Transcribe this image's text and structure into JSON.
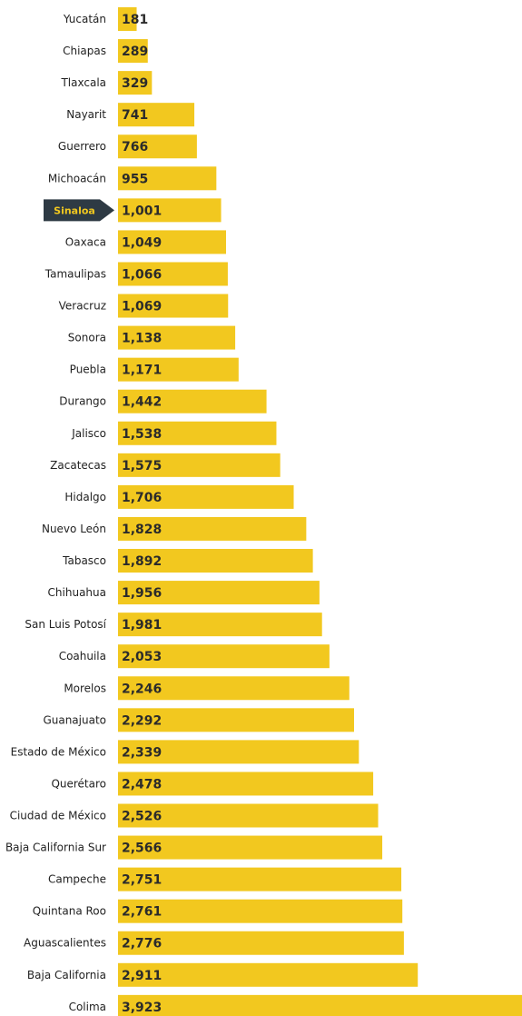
{
  "chart_data": {
    "type": "bar",
    "orientation": "horizontal",
    "categories": [
      "Yucatán",
      "Chiapas",
      "Tlaxcala",
      "Nayarit",
      "Guerrero",
      "Michoacán",
      "Sinaloa",
      "Oaxaca",
      "Tamaulipas",
      "Veracruz",
      "Sonora",
      "Puebla",
      "Durango",
      "Jalisco",
      "Zacatecas",
      "Hidalgo",
      "Nuevo León",
      "Tabasco",
      "Chihuahua",
      "San Luis Potosí",
      "Coahuila",
      "Morelos",
      "Guanajuato",
      "Estado de México",
      "Querétaro",
      "Ciudad de México",
      "Baja California Sur",
      "Campeche",
      "Quintana Roo",
      "Aguascalientes",
      "Baja California",
      "Colima"
    ],
    "values": [
      181,
      289,
      329,
      741,
      766,
      955,
      1001,
      1049,
      1066,
      1069,
      1138,
      1171,
      1442,
      1538,
      1575,
      1706,
      1828,
      1892,
      1956,
      1981,
      2053,
      2246,
      2292,
      2339,
      2478,
      2526,
      2566,
      2751,
      2761,
      2776,
      2911,
      3923
    ],
    "value_labels": [
      "181",
      "289",
      "329",
      "741",
      "766",
      "955",
      "1,001",
      "1,049",
      "1,066",
      "1,069",
      "1,138",
      "1,171",
      "1,442",
      "1,538",
      "1,575",
      "1,706",
      "1,828",
      "1,892",
      "1,956",
      "1,981",
      "2,053",
      "2,246",
      "2,292",
      "2,339",
      "2,478",
      "2,526",
      "2,566",
      "2,751",
      "2,761",
      "2,776",
      "2,911",
      "3,923"
    ],
    "highlight": {
      "category": "Sinaloa",
      "label": "Sinaloa"
    },
    "colors": {
      "bar": "#f2c81f",
      "value_text": "#2b2b2b",
      "category_text": "#222222",
      "highlight_bg": "#2e3a44",
      "highlight_text": "#f2c81f"
    },
    "xlim": [
      0,
      3923
    ],
    "grid": false,
    "legend": "none",
    "title": "",
    "xlabel": "",
    "ylabel": ""
  }
}
